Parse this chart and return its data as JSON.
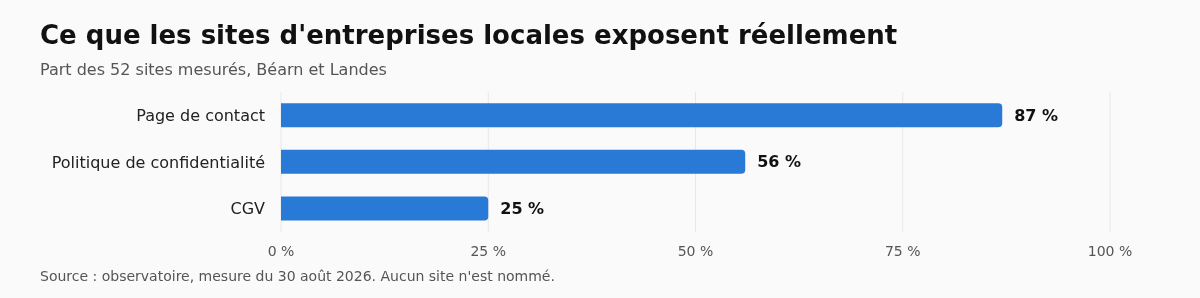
{
  "chart_data": {
    "type": "bar",
    "orientation": "horizontal",
    "title": "Ce que les sites d'entreprises locales exposent réellement",
    "subtitle": "Part des 52 sites mesurés, Béarn et Landes",
    "categories": [
      "Page de contact",
      "Politique de confidentialité",
      "CGV"
    ],
    "values": [
      87,
      56,
      25
    ],
    "value_labels": [
      "87 %",
      "56 %",
      "25 %"
    ],
    "color": "#2979d6",
    "xlim": [
      0,
      100
    ],
    "xticks": [
      {
        "value": 0,
        "label": "0 %"
      },
      {
        "value": 25,
        "label": "25 %"
      },
      {
        "value": 50,
        "label": "50 %"
      },
      {
        "value": 75,
        "label": "75 %"
      },
      {
        "value": 100,
        "label": "100 %"
      }
    ],
    "grid": "x",
    "annotations": [
      "Source : observatoire, mesure du 30 août 2026. Aucun site n'est nommé."
    ]
  }
}
